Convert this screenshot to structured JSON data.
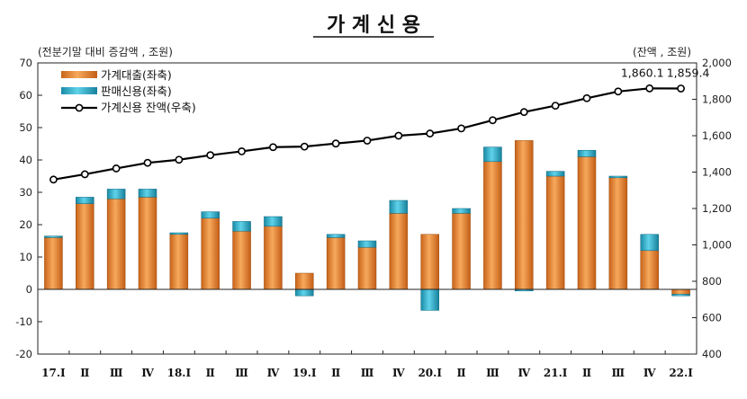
{
  "chart_data": {
    "type": "bar",
    "title": "가 계 신 용",
    "left_unit": "(전분기말 대비 증감액 , 조원)",
    "right_unit": "(잔액 , 조원)",
    "categories": [
      "17.Ⅰ",
      "Ⅱ",
      "Ⅲ",
      "Ⅳ",
      "18.Ⅰ",
      "Ⅱ",
      "Ⅲ",
      "Ⅳ",
      "19.Ⅰ",
      "Ⅱ",
      "Ⅲ",
      "Ⅳ",
      "20.Ⅰ",
      "Ⅱ",
      "Ⅲ",
      "Ⅳ",
      "21.Ⅰ",
      "Ⅱ",
      "Ⅲ",
      "Ⅳ",
      "22.Ⅰ"
    ],
    "series": [
      {
        "name": "가계대출(좌축)",
        "type": "bar",
        "axis": "left",
        "color": "#e8862e",
        "values": [
          16,
          26.5,
          28,
          28.5,
          17,
          22,
          18,
          19.5,
          5,
          16,
          13,
          23.5,
          17,
          23.5,
          39.5,
          46,
          35,
          41,
          34.5,
          12,
          -1.5
        ]
      },
      {
        "name": "판매신용(좌축)",
        "type": "bar",
        "axis": "left",
        "color": "#2bb3cf",
        "values": [
          0.5,
          2,
          3,
          2.5,
          0.5,
          2,
          3,
          3,
          -2,
          1,
          2,
          4,
          -6.5,
          1.5,
          4.5,
          -0.5,
          1.5,
          2,
          0.5,
          5,
          -0.5
        ]
      },
      {
        "name": "가계신용 잔액(우축)",
        "type": "line",
        "axis": "right",
        "color": "#000000",
        "values": [
          1359,
          1388,
          1420,
          1451,
          1468,
          1493,
          1514,
          1537,
          1540,
          1557,
          1573,
          1600,
          1612,
          1640,
          1685,
          1730,
          1765,
          1806,
          1843,
          1860.1,
          1859.4
        ]
      }
    ],
    "annotations": [
      {
        "index": 19,
        "label": "1,860.1"
      },
      {
        "index": 20,
        "label": "1,859.4"
      }
    ],
    "left_axis": {
      "min": -20,
      "max": 70,
      "step": 10,
      "tick_labels": [
        "-20",
        "-10",
        "0",
        "10",
        "20",
        "30",
        "40",
        "50",
        "60",
        "70"
      ]
    },
    "right_axis": {
      "min": 400,
      "max": 2000,
      "step": 200,
      "tick_labels": [
        "400",
        "600",
        "800",
        "1,000",
        "1,200",
        "1,400",
        "1,600",
        "1,800",
        "2,000"
      ]
    },
    "grid": false,
    "legend_position": "top-left"
  }
}
